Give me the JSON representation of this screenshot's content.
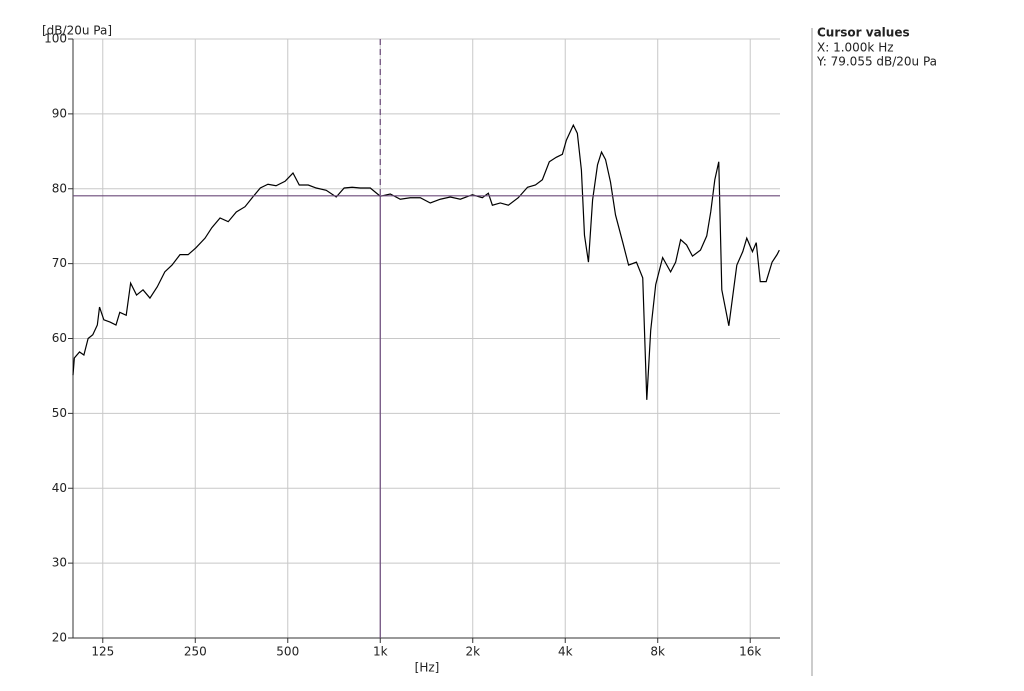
{
  "chart_data": {
    "type": "line",
    "y_axis_label": "[dB/20u Pa]",
    "x_axis_label": "[Hz]",
    "xscale": "log",
    "grid": true,
    "color": "#000000",
    "cursor_color": "#6b4a7a",
    "xlim": [
      100,
      20000
    ],
    "ylim": [
      20,
      100
    ],
    "xticks": [
      125,
      250,
      500,
      {
        "value": 1000,
        "label": "1k"
      },
      {
        "value": 2000,
        "label": "2k"
      },
      {
        "value": 4000,
        "label": "4k"
      },
      {
        "value": 8000,
        "label": "8k"
      },
      {
        "value": 16000,
        "label": "16k"
      }
    ],
    "yticks": [
      20,
      30,
      40,
      50,
      60,
      70,
      80,
      90,
      100
    ],
    "x": [
      100,
      101,
      105,
      108.5,
      112,
      116,
      120,
      122,
      126,
      132,
      138,
      142,
      149,
      154,
      161,
      169,
      178,
      188,
      199,
      210,
      223,
      237,
      251,
      269,
      283,
      301,
      320,
      340,
      363,
      383,
      407,
      431,
      458,
      490,
      520,
      545,
      583,
      619,
      667,
      719,
      763,
      810,
      861,
      928,
      1000,
      1078,
      1162,
      1252,
      1350,
      1455,
      1568,
      1690,
      1822,
      1995,
      2149,
      2248,
      2317,
      2459,
      2612,
      2813,
      3015,
      3200,
      3370,
      3550,
      3740,
      3915,
      4035,
      4250,
      4380,
      4515,
      4620,
      4760,
      4910,
      5095,
      5250,
      5410,
      5615,
      5830,
      6150,
      6430,
      6820,
      7150,
      7370,
      7590,
      7880,
      8300,
      8810,
      9150,
      9500,
      9930,
      10380,
      11020,
      11550,
      11900,
      12270,
      12640,
      12930,
      13630,
      14470,
      15130,
      15590,
      16270,
      16740,
      17250,
      18030,
      18850,
      19560,
      19900
    ],
    "values": [
      55.1,
      57.4,
      58.2,
      57.8,
      60,
      60.5,
      61.8,
      64.2,
      62.5,
      62.2,
      61.8,
      63.5,
      63.1,
      67.4,
      65.8,
      66.5,
      65.4,
      66.9,
      68.9,
      69.8,
      71.2,
      71.2,
      72.1,
      73.4,
      74.8,
      76.1,
      75.6,
      76.9,
      77.6,
      78.8,
      80.1,
      80.6,
      80.4,
      81,
      82.1,
      80.5,
      80.5,
      80.1,
      79.8,
      78.9,
      80.1,
      80.2,
      80.1,
      80.1,
      79,
      79.3,
      78.6,
      78.8,
      78.8,
      78.1,
      78.6,
      78.9,
      78.6,
      79.2,
      78.8,
      79.4,
      77.8,
      78.1,
      77.8,
      78.8,
      80.2,
      80.5,
      81.2,
      83.6,
      84.2,
      84.6,
      86.5,
      88.5,
      87.4,
      82.5,
      73.8,
      70.2,
      78.5,
      83.2,
      84.9,
      83.9,
      80.9,
      76.5,
      72.9,
      69.8,
      70.2,
      68.1,
      51.8,
      61.1,
      67.2,
      70.8,
      68.9,
      70.2,
      73.2,
      72.5,
      71,
      71.8,
      73.7,
      76.9,
      81.2,
      83.6,
      66.5,
      61.7,
      69.8,
      71.6,
      73.4,
      71.6,
      72.8,
      67.6,
      67.6,
      70.2,
      71.2,
      71.8
    ],
    "cursor": {
      "title": "Cursor values",
      "x": 1000,
      "y": 79.055,
      "x_label": "X: 1.000k Hz",
      "y_label": "Y: 79.055 dB/20u Pa"
    }
  }
}
